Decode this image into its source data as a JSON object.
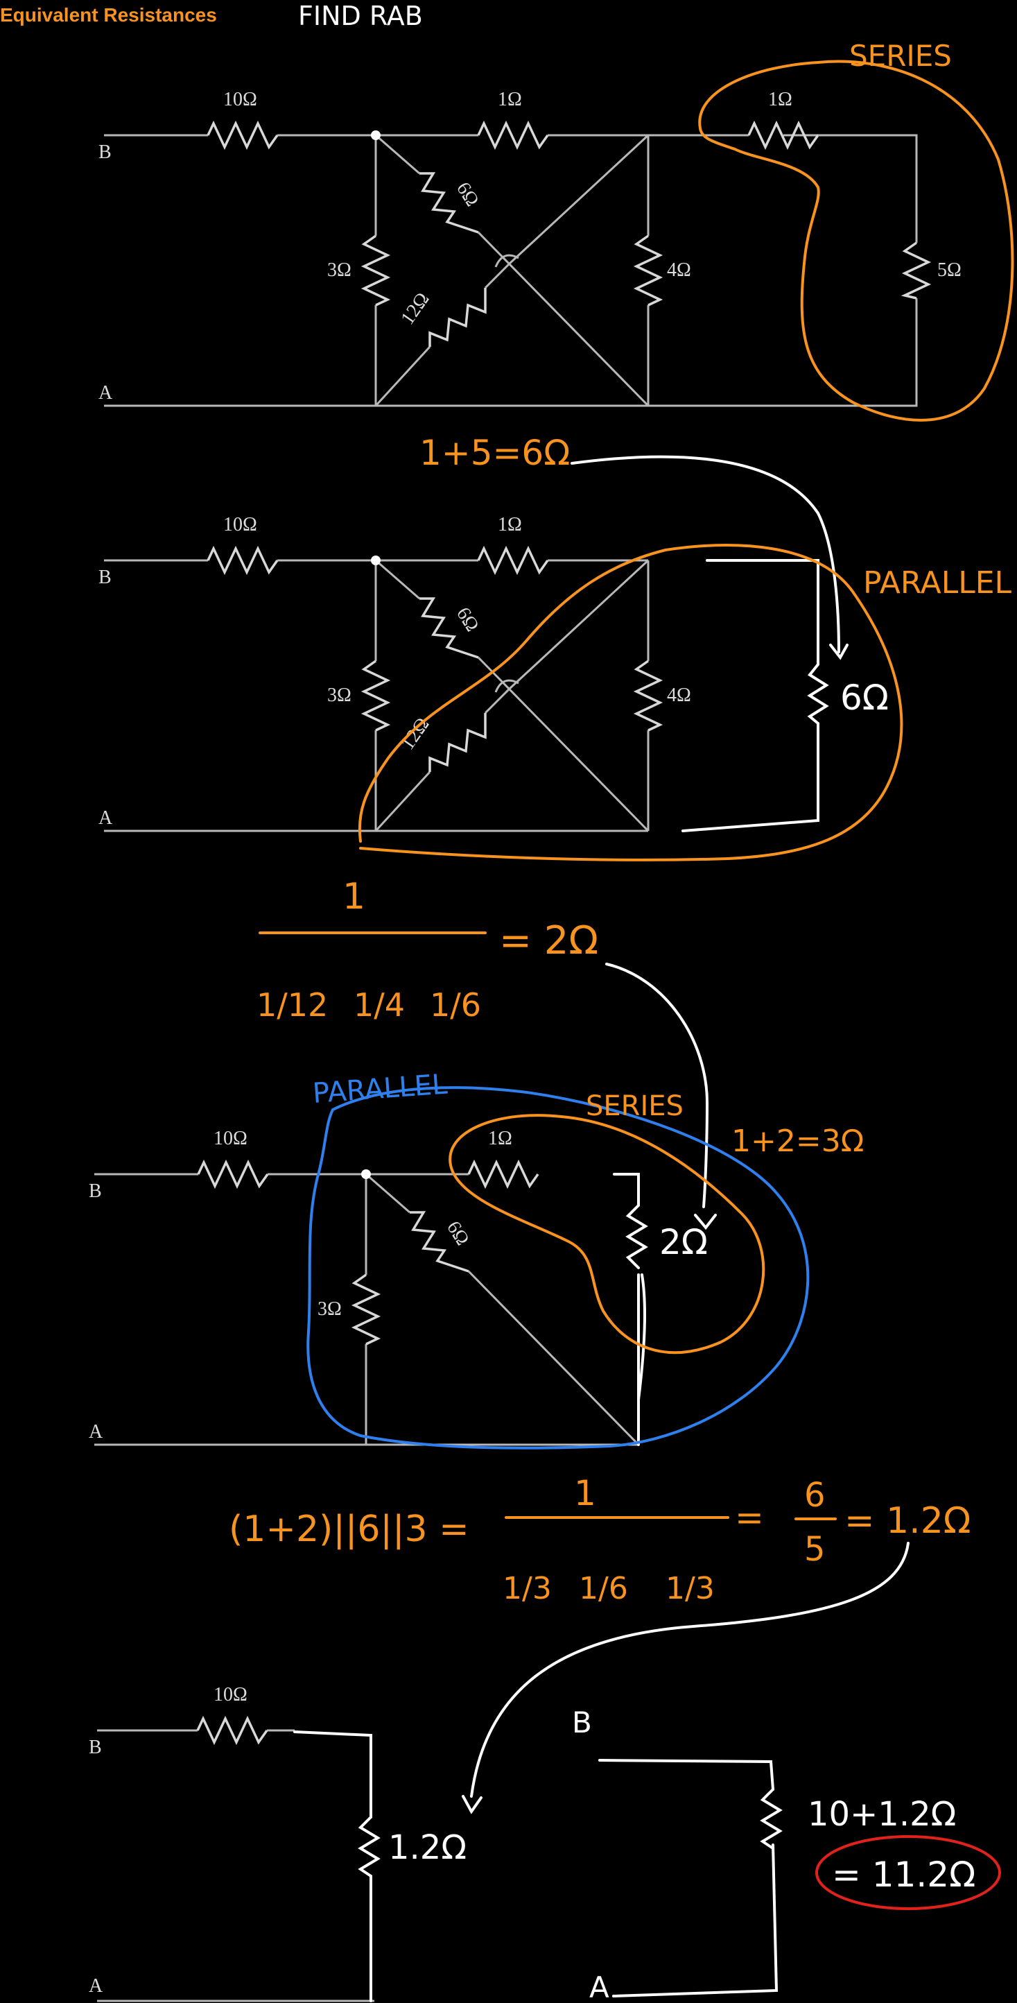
{
  "header": {
    "title": "Equivalent Resistances",
    "heading": "FIND RAB"
  },
  "nodes": {
    "b": "B",
    "a": "A"
  },
  "circuit1": {
    "r10": "10Ω",
    "r1a": "1Ω",
    "r1b": "1Ω",
    "r6": "6Ω",
    "r3": "3Ω",
    "r12": "12Ω",
    "r4": "4Ω",
    "r5": "5Ω"
  },
  "circuit2": {
    "r10": "10Ω",
    "r1": "1Ω",
    "r6": "6Ω",
    "r3": "3Ω",
    "r12": "12Ω",
    "r4": "4Ω",
    "r6new": "6Ω"
  },
  "circuit3": {
    "r10": "10Ω",
    "r1": "1Ω",
    "r6": "6Ω",
    "r3": "3Ω",
    "r2new": "2Ω"
  },
  "circuit4": {
    "r10": "10Ω",
    "r12new": "1.2Ω"
  },
  "annotations": {
    "series1": "SERIES",
    "eq_series1": "1+5=6Ω",
    "parallel1": "PARALLEL",
    "frac1_num": "1",
    "frac1_den": [
      "1/12",
      "1/4",
      "1/6"
    ],
    "frac1_result": "= 2Ω",
    "parallel2": "PARALLEL",
    "series2": "SERIES",
    "eq_series2": "1+2=3Ω",
    "eq_combo_lhs": "(1+2)||6||3 =",
    "frac2_num": "1",
    "frac2_den": [
      "1/3",
      "1/6",
      "1/3"
    ],
    "frac2_mid": "=",
    "frac2_ratio_num": "6",
    "frac2_ratio_den": "5",
    "frac2_result": "= 1.2Ω",
    "final_b": "B",
    "final_a": "A",
    "final_sum": "10+1.2Ω",
    "final_answer": "= 11.2Ω"
  },
  "colors": {
    "accent": "#f7931e",
    "ink_white": "#ffffff",
    "ink_blue": "#2f80ed",
    "ink_red": "#e0211c",
    "wire": "#b8b8b8"
  }
}
